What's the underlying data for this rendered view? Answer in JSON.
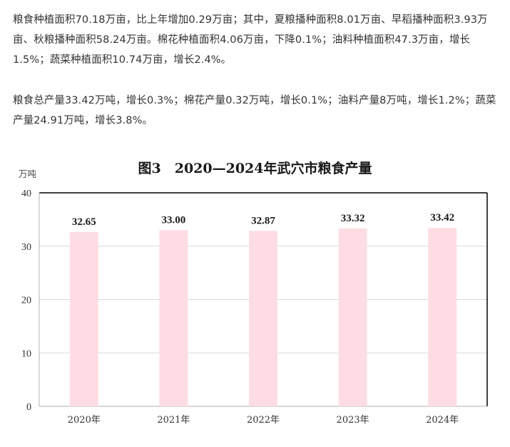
{
  "text": {
    "paragraph1": "粮食种植面积70.18万亩，比上年增加0.29万亩；其中，夏粮播种面积8.01万亩、早稻播种面积3.93万亩、秋粮播种面积58.24万亩。棉花种植面积4.06万亩，下降0.1%；油料种植面积47.3万亩，增长1.5%；蔬菜种植面积10.74万亩，增长2.4%。",
    "paragraph2": "粮食总产量33.42万吨，增长0.3%；棉花产量0.32万吨，增长0.1%；油料产量8万吨，增长1.2%；蔬菜产量24.91万吨，增长3.8%。"
  },
  "chart_data": {
    "type": "bar",
    "title": "图3　2020—2024年武穴市粮食产量",
    "unit_label": "万吨",
    "categories": [
      "2020年",
      "2021年",
      "2022年",
      "2023年",
      "2024年"
    ],
    "values": [
      32.65,
      33.0,
      32.87,
      33.32,
      33.42
    ],
    "value_labels": [
      "32.65",
      "33.00",
      "32.87",
      "33.32",
      "33.42"
    ],
    "ylim": [
      0,
      40
    ],
    "yticks": [
      "0",
      "10",
      "20",
      "30",
      "40"
    ],
    "grid": true,
    "bar_color": "#fddde3",
    "legend": "none"
  }
}
